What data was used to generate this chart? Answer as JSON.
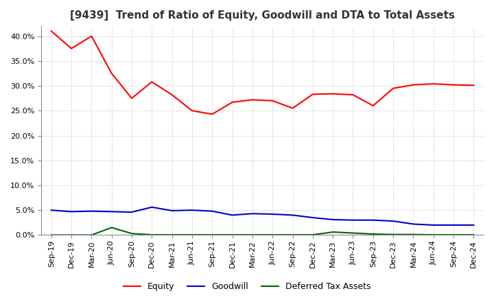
{
  "title": "[9439]  Trend of Ratio of Equity, Goodwill and DTA to Total Assets",
  "x_labels": [
    "Sep-19",
    "Dec-19",
    "Mar-20",
    "Jun-20",
    "Sep-20",
    "Dec-20",
    "Mar-21",
    "Jun-21",
    "Sep-21",
    "Dec-21",
    "Mar-22",
    "Jun-22",
    "Sep-22",
    "Dec-22",
    "Mar-23",
    "Jun-23",
    "Sep-23",
    "Dec-23",
    "Mar-24",
    "Jun-24",
    "Sep-24",
    "Dec-24"
  ],
  "equity": [
    41.0,
    37.5,
    40.0,
    32.5,
    27.5,
    30.8,
    28.2,
    25.0,
    24.3,
    26.7,
    27.2,
    27.0,
    25.5,
    28.3,
    28.4,
    28.2,
    26.0,
    29.5,
    30.2,
    30.4,
    30.2,
    30.1
  ],
  "goodwill": [
    5.0,
    4.7,
    4.8,
    4.7,
    4.6,
    5.6,
    4.9,
    5.0,
    4.8,
    4.0,
    4.3,
    4.2,
    4.0,
    3.5,
    3.1,
    3.0,
    3.0,
    2.8,
    2.2,
    2.0,
    2.0,
    2.0
  ],
  "dta": [
    0.0,
    0.0,
    0.0,
    1.5,
    0.3,
    0.05,
    0.05,
    0.05,
    0.05,
    0.05,
    0.05,
    0.05,
    0.05,
    0.05,
    0.6,
    0.4,
    0.2,
    0.1,
    0.1,
    0.05,
    0.05,
    0.05
  ],
  "equity_color": "#FF0000",
  "goodwill_color": "#0000CC",
  "dta_color": "#006600",
  "ylim": [
    0.0,
    42.0
  ],
  "yticks": [
    0.0,
    5.0,
    10.0,
    15.0,
    20.0,
    25.0,
    30.0,
    35.0,
    40.0
  ],
  "background_color": "#FFFFFF",
  "plot_bg_color": "#FFFFFF",
  "grid_color": "#BBBBBB",
  "title_fontsize": 11,
  "tick_fontsize": 8,
  "legend_labels": [
    "Equity",
    "Goodwill",
    "Deferred Tax Assets"
  ]
}
